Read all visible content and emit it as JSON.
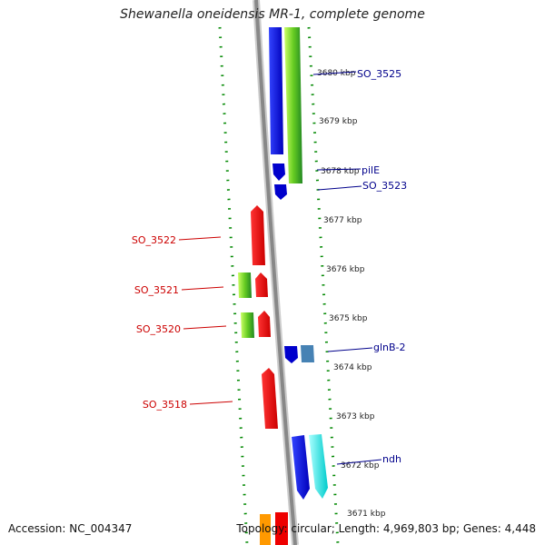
{
  "title": "Shewanella oneidensis MR-1, complete genome",
  "ticks": [
    "3680 kbp",
    "3679 kbp",
    "3678 kbp",
    "3677 kbp",
    "3676 kbp",
    "3675 kbp",
    "3674 kbp",
    "3673 kbp",
    "3672 kbp",
    "3671 kbp"
  ],
  "gene_labels_right": [
    "SO_3525",
    "pilE",
    "SO_3523",
    "glnB-2",
    "ndh"
  ],
  "gene_labels_left": [
    "SO_3522",
    "SO_3521",
    "SO_3520",
    "SO_3518"
  ],
  "colors": {
    "forward_gene": "#0000ee",
    "reverse_gene": "#ee0000",
    "cds_green": "#66cc22",
    "steelblue_gene": "#4682b4",
    "cyan_gene": "#00ffff",
    "backbone": "#888888",
    "gc_dots": "#008800",
    "label_right": "#00008b",
    "label_left": "#cc0000"
  },
  "footer": {
    "accession": "Accession: NC_004347",
    "topology": "Topology: circular; Length: 4,969,803 bp; Genes: 4,448"
  }
}
